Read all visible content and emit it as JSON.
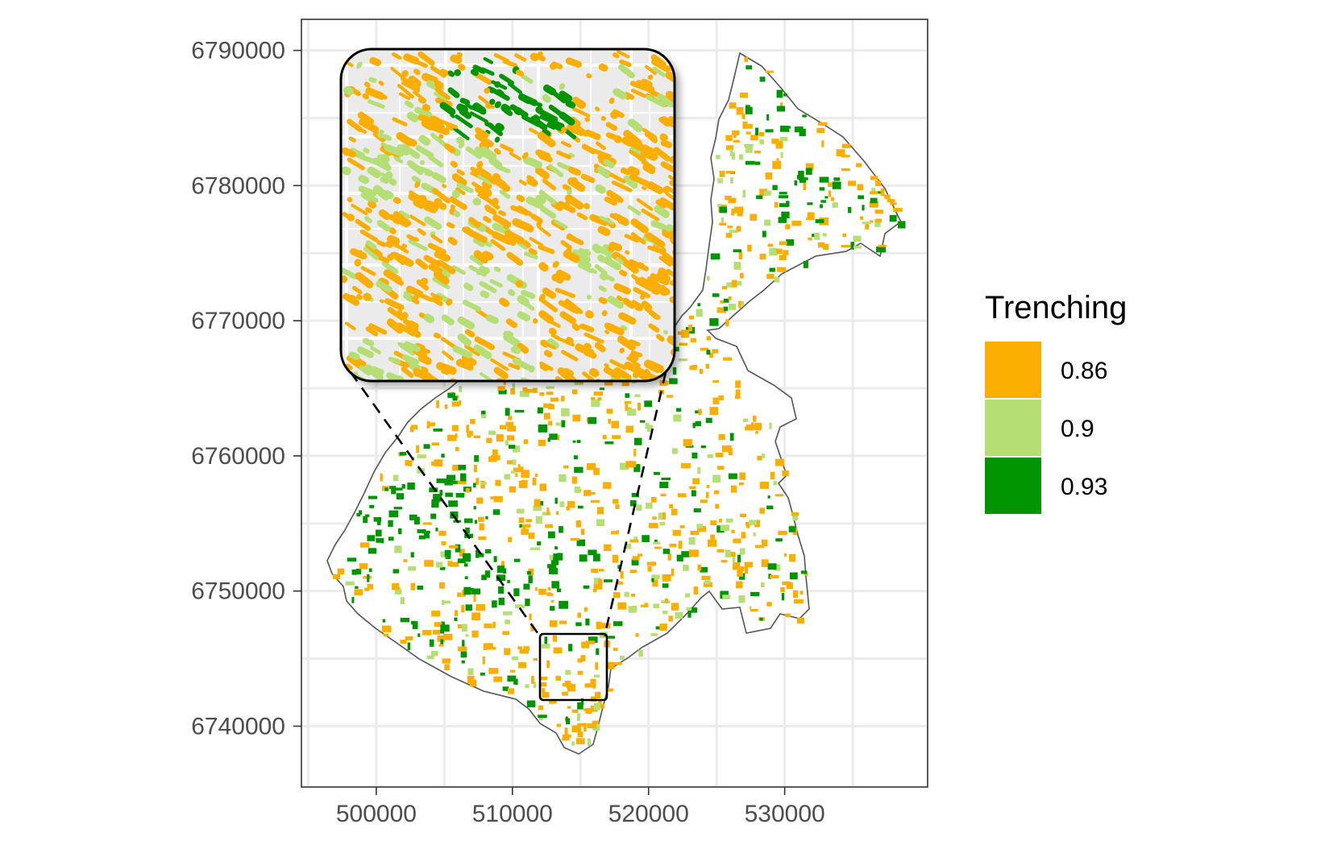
{
  "chart_data": {
    "type": "map",
    "title": "",
    "xlabel": "",
    "ylabel": "",
    "xlim": [
      494500,
      540500
    ],
    "ylim": [
      6735500,
      6792300
    ],
    "x_ticks": [
      500000,
      510000,
      520000,
      530000
    ],
    "y_ticks": [
      6790000,
      6780000,
      6770000,
      6760000,
      6750000,
      6740000
    ],
    "grid": true,
    "legend": {
      "title": "Trenching",
      "position": "right",
      "entries": [
        {
          "label": "0.86",
          "color": "#FAAE00"
        },
        {
          "label": "0.9",
          "color": "#B5DE75"
        },
        {
          "label": "0.93",
          "color": "#009500"
        }
      ]
    },
    "inset": {
      "description_visible": false,
      "zoom_box": {
        "x": [
          510000,
          515000
        ],
        "y": [
          6741000,
          6746000
        ]
      }
    }
  },
  "colors": {
    "panel_border": "#333333",
    "grid": "#ebebeb",
    "outline": "#555555",
    "inset_bg": "#ebebeb"
  }
}
